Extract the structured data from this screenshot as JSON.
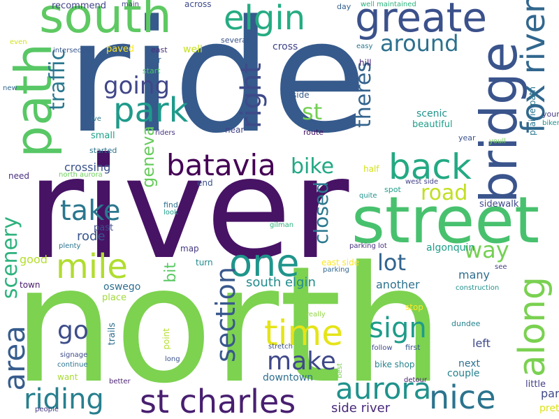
{
  "words": [
    {
      "text": "ride",
      "color": "#365a8c"
    },
    {
      "text": "river",
      "color": "#471365"
    },
    {
      "text": "north",
      "color": "#7dd250"
    },
    {
      "text": "street",
      "color": "#48c16e"
    },
    {
      "text": "south",
      "color": "#5ec962"
    },
    {
      "text": "bridge",
      "color": "#3a548c"
    },
    {
      "text": "path",
      "color": "#58c765"
    },
    {
      "text": "elgin",
      "color": "#25ac82"
    },
    {
      "text": "greate",
      "color": "#3b518b"
    },
    {
      "text": "fox river",
      "color": "#31678e"
    },
    {
      "text": "st charles",
      "color": "#481f70"
    },
    {
      "text": "back",
      "color": "#23a983"
    },
    {
      "text": "one",
      "color": "#1f958b"
    },
    {
      "text": "mile",
      "color": "#b0dd2f"
    },
    {
      "text": "along",
      "color": "#7ad151"
    },
    {
      "text": "park",
      "color": "#1f9a8a"
    },
    {
      "text": "batavia",
      "color": "#440154"
    },
    {
      "text": "time",
      "color": "#e5e419"
    },
    {
      "text": "nice",
      "color": "#2c738e"
    },
    {
      "text": "area",
      "color": "#365c8d"
    },
    {
      "text": "aurora",
      "color": "#20928c"
    },
    {
      "text": "take",
      "color": "#2a778e"
    },
    {
      "text": "riding",
      "color": "#277f8e"
    },
    {
      "text": "section",
      "color": "#38588c"
    },
    {
      "text": "sign",
      "color": "#1e9c89"
    },
    {
      "text": "make",
      "color": "#3f4889"
    },
    {
      "text": "right",
      "color": "#3e4a89"
    },
    {
      "text": "going",
      "color": "#404688"
    },
    {
      "text": "around",
      "color": "#2d708e"
    },
    {
      "text": "go",
      "color": "#3d4d8a"
    },
    {
      "text": "road",
      "color": "#c2df23"
    },
    {
      "text": "st",
      "color": "#75d054"
    },
    {
      "text": "theres",
      "color": "#33638d"
    },
    {
      "text": "bike",
      "color": "#22a884"
    },
    {
      "text": "way",
      "color": "#75d054"
    },
    {
      "text": "lot",
      "color": "#32648e"
    },
    {
      "text": "closed",
      "color": "#2a788e"
    },
    {
      "text": "scenery",
      "color": "#2db27d"
    },
    {
      "text": "traffic",
      "color": "#2a788e"
    },
    {
      "text": "geneva",
      "color": "#67cc5c"
    },
    {
      "text": "bit",
      "color": "#5ac864"
    },
    {
      "text": "south elgin",
      "color": "#228c8d"
    },
    {
      "text": "downtown",
      "color": "#2e6f8e"
    },
    {
      "text": "side river",
      "color": "#482878"
    },
    {
      "text": "crossing",
      "color": "#3a538b"
    },
    {
      "text": "rode",
      "color": "#39558c"
    },
    {
      "text": "good",
      "color": "#b5de2b"
    },
    {
      "text": "oswego",
      "color": "#2e6e8e"
    },
    {
      "text": "many",
      "color": "#2e6e8e"
    },
    {
      "text": "another",
      "color": "#2d718e"
    },
    {
      "text": "left",
      "color": "#3e4a89"
    },
    {
      "text": "next",
      "color": "#2d708e"
    },
    {
      "text": "couple",
      "color": "#26828e"
    },
    {
      "text": "part",
      "color": "#3e4989"
    },
    {
      "text": "little",
      "color": "#433e85"
    },
    {
      "text": "pretty",
      "color": "#dde318"
    },
    {
      "text": "scenic",
      "color": "#20928c"
    },
    {
      "text": "beautiful",
      "color": "#1f9e89"
    },
    {
      "text": "algonquin",
      "color": "#1f9e89"
    },
    {
      "text": "sidewalk",
      "color": "#3e4a89"
    },
    {
      "text": "prairie path",
      "color": "#2a768e"
    },
    {
      "text": "youre",
      "color": "#453882"
    },
    {
      "text": "biker",
      "color": "#21918c"
    },
    {
      "text": "youll",
      "color": "#70cf57"
    },
    {
      "text": "year",
      "color": "#3b518b"
    },
    {
      "text": "recommend",
      "color": "#414487"
    },
    {
      "text": "main",
      "color": "#424186"
    },
    {
      "text": "across",
      "color": "#3e4c8a"
    },
    {
      "text": "day",
      "color": "#34618d"
    },
    {
      "text": "well maintained",
      "color": "#2db27d"
    },
    {
      "text": "even",
      "color": "#d2e21b"
    },
    {
      "text": "paved",
      "color": "#fde725"
    },
    {
      "text": "east",
      "color": "#472d7b"
    },
    {
      "text": "well",
      "color": "#c8e020"
    },
    {
      "text": "several",
      "color": "#3a548c"
    },
    {
      "text": "easy",
      "color": "#2a788e"
    },
    {
      "text": "intersection",
      "color": "#38588c"
    },
    {
      "text": "far",
      "color": "#35608d"
    },
    {
      "text": "cross",
      "color": "#404588"
    },
    {
      "text": "hill",
      "color": "#482475"
    },
    {
      "text": "start",
      "color": "#4ac16d"
    },
    {
      "text": "new",
      "color": "#31688e"
    },
    {
      "text": "side",
      "color": "#365d8d"
    },
    {
      "text": "ive",
      "color": "#2b758e"
    },
    {
      "text": "riders",
      "color": "#46327e"
    },
    {
      "text": "near",
      "color": "#414487"
    },
    {
      "text": "route",
      "color": "#471365"
    },
    {
      "text": "small",
      "color": "#1fa188"
    },
    {
      "text": "started",
      "color": "#2c738e"
    },
    {
      "text": "need",
      "color": "#472f7d"
    },
    {
      "text": "north aurora",
      "color": "#6ccd5a"
    },
    {
      "text": "half",
      "color": "#d2e21b"
    },
    {
      "text": "end",
      "color": "#3b518b"
    },
    {
      "text": "west side",
      "color": "#424186"
    },
    {
      "text": "spot",
      "color": "#1f9f88"
    },
    {
      "text": "find",
      "color": "#2d708e"
    },
    {
      "text": "look",
      "color": "#1f9a8a"
    },
    {
      "text": "quite",
      "color": "#21918c"
    },
    {
      "text": "past",
      "color": "#3e4c8a"
    },
    {
      "text": "gilman",
      "color": "#2db27d"
    },
    {
      "text": "map",
      "color": "#453882"
    },
    {
      "text": "parking lot",
      "color": "#46317e"
    },
    {
      "text": "plenty",
      "color": "#2c738e"
    },
    {
      "text": "turn",
      "color": "#23898e"
    },
    {
      "text": "east side",
      "color": "#fde725"
    },
    {
      "text": "parking",
      "color": "#31688e"
    },
    {
      "text": "see",
      "color": "#424086"
    },
    {
      "text": "town",
      "color": "#481a6c"
    },
    {
      "text": "place",
      "color": "#a0da39"
    },
    {
      "text": "construction",
      "color": "#21918c"
    },
    {
      "text": "stop",
      "color": "#fde725"
    },
    {
      "text": "really",
      "color": "#90d743"
    },
    {
      "text": "dundee",
      "color": "#26828e"
    },
    {
      "text": "trails",
      "color": "#2e6f8e"
    },
    {
      "text": "point",
      "color": "#b5de2b"
    },
    {
      "text": "stretch",
      "color": "#3b528b"
    },
    {
      "text": "follow",
      "color": "#3e4a89"
    },
    {
      "text": "first",
      "color": "#38588c"
    },
    {
      "text": "signage",
      "color": "#3e4c8a"
    },
    {
      "text": "long",
      "color": "#3b528b"
    },
    {
      "text": "continue",
      "color": "#2b748e"
    },
    {
      "text": "bike shop",
      "color": "#25848e"
    },
    {
      "text": "want",
      "color": "#a8db34"
    },
    {
      "text": "better",
      "color": "#481f70"
    },
    {
      "text": "best",
      "color": "#7ad151"
    },
    {
      "text": "detour",
      "color": "#481f70"
    },
    {
      "text": "people",
      "color": "#453882"
    }
  ]
}
